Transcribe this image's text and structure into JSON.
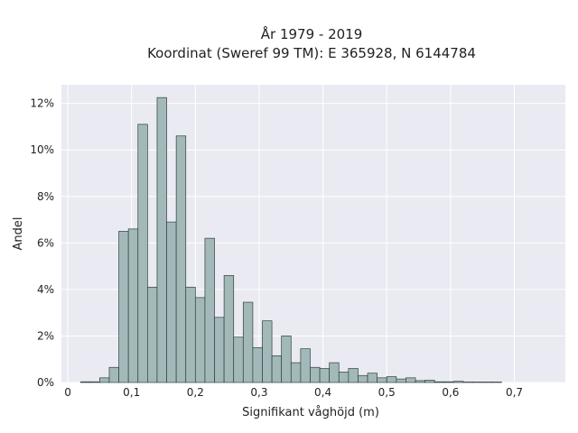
{
  "chart_data": {
    "type": "bar",
    "title": [
      "År 1979 - 2019",
      "Koordinat (Sweref 99 TM): E 365928, N 6144784"
    ],
    "xlabel": "Signifikant våghöjd (m)",
    "ylabel": "Andel",
    "xlim": [
      -0.01,
      0.78
    ],
    "ylim": [
      0,
      12.8
    ],
    "grid": true,
    "bar_color": "#a3b9b9",
    "edge_color": "#2f3f3f",
    "plot_background": "#eaeaf2",
    "bin_width": 0.015,
    "x_ticks": [
      {
        "value": 0,
        "label": "0"
      },
      {
        "value": 0.1,
        "label": "0,1"
      },
      {
        "value": 0.2,
        "label": "0,2"
      },
      {
        "value": 0.3,
        "label": "0,3"
      },
      {
        "value": 0.4,
        "label": "0,4"
      },
      {
        "value": 0.5,
        "label": "0,5"
      },
      {
        "value": 0.6,
        "label": "0,6"
      },
      {
        "value": 0.7,
        "label": "0,7"
      }
    ],
    "y_ticks": [
      {
        "value": 0,
        "label": "0%"
      },
      {
        "value": 2,
        "label": "2%"
      },
      {
        "value": 4,
        "label": "4%"
      },
      {
        "value": 6,
        "label": "6%"
      },
      {
        "value": 8,
        "label": "8%"
      },
      {
        "value": 10,
        "label": "10%"
      },
      {
        "value": 12,
        "label": "12%"
      }
    ],
    "bins_left": [
      0.02,
      0.035,
      0.05,
      0.065,
      0.08,
      0.095,
      0.11,
      0.125,
      0.14,
      0.155,
      0.17,
      0.185,
      0.2,
      0.215,
      0.23,
      0.245,
      0.26,
      0.275,
      0.29,
      0.305,
      0.32,
      0.335,
      0.35,
      0.365,
      0.38,
      0.395,
      0.41,
      0.425,
      0.44,
      0.455,
      0.47,
      0.485,
      0.5,
      0.515,
      0.53,
      0.545,
      0.56,
      0.575,
      0.59,
      0.605,
      0.62,
      0.635,
      0.65,
      0.665
    ],
    "values": [
      0.03,
      0.03,
      0.2,
      0.65,
      6.5,
      6.6,
      11.1,
      4.1,
      12.25,
      6.9,
      10.6,
      4.1,
      3.65,
      6.2,
      2.8,
      4.6,
      1.95,
      3.45,
      1.5,
      2.65,
      1.15,
      2.0,
      0.85,
      1.45,
      0.65,
      0.6,
      0.85,
      0.45,
      0.6,
      0.3,
      0.4,
      0.2,
      0.25,
      0.15,
      0.2,
      0.08,
      0.1,
      0.03,
      0.03,
      0.05,
      0.02,
      0.02,
      0.02,
      0.02
    ]
  }
}
